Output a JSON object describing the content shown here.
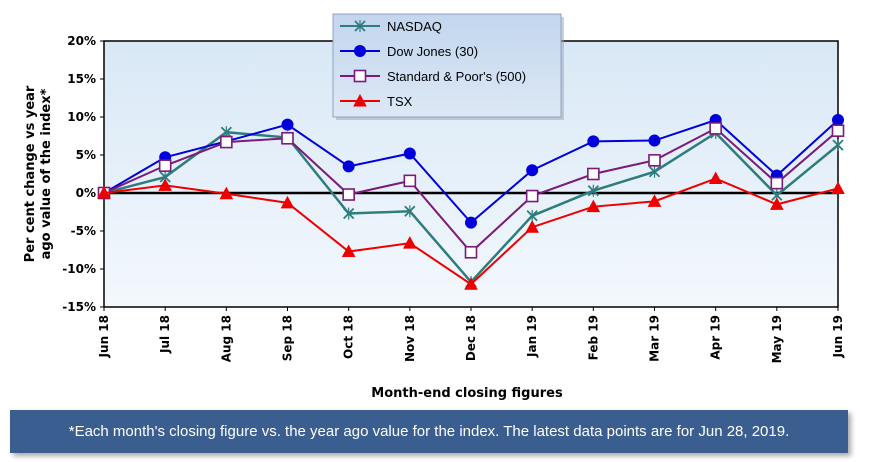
{
  "chart_data": {
    "type": "line",
    "title": "",
    "xlabel": "Month-end closing figures",
    "ylabel": "Per cent change vs year ago value of the index*",
    "ylim": [
      -15,
      20
    ],
    "yticks": [
      "20%",
      "15%",
      "10%",
      "5%",
      "0%",
      "-5%",
      "-10%",
      "-15%"
    ],
    "categories": [
      "Jun 18",
      "Jul 18",
      "Aug 18",
      "Sep 18",
      "Oct 18",
      "Nov 18",
      "Dec 18",
      "Jan 19",
      "Feb 19",
      "Mar 19",
      "Apr 19",
      "May 19",
      "Jun 19"
    ],
    "legend_position": "top-center",
    "grid": false,
    "series": [
      {
        "name": "NASDAQ",
        "color": "#2e7d7d",
        "marker": "x",
        "values": [
          0,
          2.1,
          8.0,
          7.3,
          -2.7,
          -2.4,
          -11.7,
          -3.0,
          0.3,
          2.8,
          7.9,
          -0.3,
          6.3
        ]
      },
      {
        "name": "Dow Jones (30)",
        "color": "#0000dd",
        "marker": "circle",
        "values": [
          0,
          4.7,
          6.8,
          9.0,
          3.5,
          5.2,
          -3.9,
          3.0,
          6.8,
          6.9,
          9.6,
          2.3,
          9.6
        ]
      },
      {
        "name": "Standard & Poor's (500)",
        "color": "#7a1a7a",
        "marker": "square",
        "values": [
          0,
          3.6,
          6.7,
          7.2,
          -0.2,
          1.6,
          -7.8,
          -0.4,
          2.5,
          4.3,
          8.5,
          1.3,
          8.2
        ]
      },
      {
        "name": "TSX",
        "color": "#ee0000",
        "marker": "triangle",
        "values": [
          0,
          1.0,
          -0.1,
          -1.3,
          -7.7,
          -6.6,
          -12.0,
          -4.5,
          -1.8,
          -1.1,
          1.9,
          -1.5,
          0.6
        ]
      }
    ]
  },
  "footnote": "*Each month's closing figure vs. the year ago value for the index. The latest data points are for Jun 28, 2019."
}
